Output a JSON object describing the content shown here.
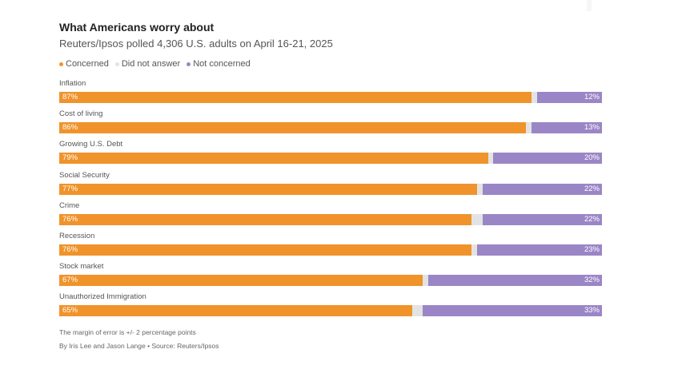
{
  "title": "What Americans worry about",
  "subtitle": "Reuters/Ipsos polled 4,306 U.S. adults on April 16-21, 2025",
  "legend": [
    {
      "label": "Concerned",
      "color": "#f0932b"
    },
    {
      "label": "Did not answer",
      "color": "#e3e3e3"
    },
    {
      "label": "Not concerned",
      "color": "#9a86c6"
    }
  ],
  "chart_data": {
    "type": "bar",
    "orientation": "horizontal-stacked-100",
    "title": "What Americans worry about",
    "categories": [
      "Inflation",
      "Cost of living",
      "Growing U.S. Debt",
      "Social Security",
      "Crime",
      "Recession",
      "Stock market",
      "Unauthorized Immigration"
    ],
    "series": [
      {
        "name": "Concerned",
        "color": "#f0932b",
        "values": [
          87,
          86,
          79,
          77,
          76,
          76,
          67,
          65
        ],
        "labels": [
          "87%",
          "86%",
          "79%",
          "77%",
          "76%",
          "76%",
          "67%",
          "65%"
        ]
      },
      {
        "name": "Did not answer",
        "color": "#e3e3e3",
        "values": [
          1,
          1,
          1,
          1,
          2,
          1,
          1,
          2
        ]
      },
      {
        "name": "Not concerned",
        "color": "#9a86c6",
        "values": [
          12,
          13,
          20,
          22,
          22,
          23,
          32,
          33
        ],
        "labels": [
          "12%",
          "13%",
          "20%",
          "22%",
          "22%",
          "23%",
          "32%",
          "33%"
        ]
      }
    ],
    "xlim": [
      0,
      100
    ]
  },
  "footnotes": {
    "margin": "The margin of error is +/- 2 percentage points",
    "credit": "By Iris Lee and Jason Lange • Source: Reuters/Ipsos"
  }
}
